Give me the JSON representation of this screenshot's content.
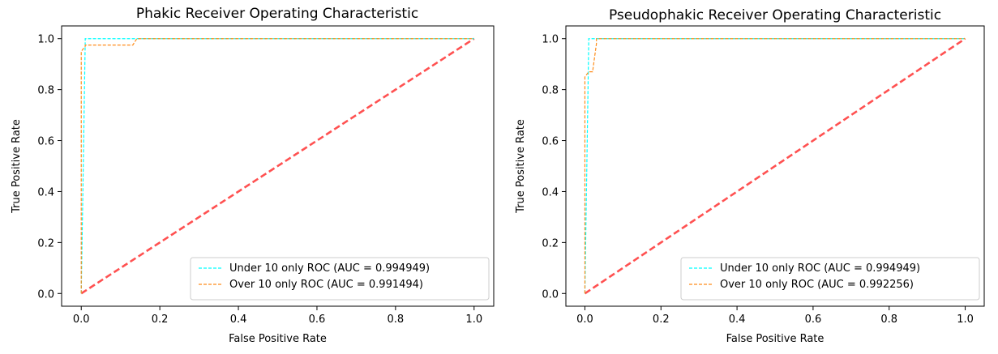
{
  "chart_data": [
    {
      "type": "line",
      "title": "Phakic Receiver Operating Characteristic",
      "xlabel": "False Positive Rate",
      "ylabel": "True Positive Rate",
      "xlim": [
        -0.05,
        1.05
      ],
      "ylim": [
        -0.05,
        1.05
      ],
      "xticks": [
        0.0,
        0.2,
        0.4,
        0.6,
        0.8,
        1.0
      ],
      "yticks": [
        0.0,
        0.2,
        0.4,
        0.6,
        0.8,
        1.0
      ],
      "tick_labels_x": [
        "0.0",
        "0.2",
        "0.4",
        "0.6",
        "0.8",
        "1.0"
      ],
      "tick_labels_y": [
        "0.0",
        "0.2",
        "0.4",
        "0.6",
        "0.8",
        "1.0"
      ],
      "grid": false,
      "legend_position": "lower-right",
      "series": [
        {
          "name": "Under 10 only ROC (AUC = 0.994949)",
          "color": "#00ffff",
          "style": "dashed",
          "x": [
            0.0,
            0.0101,
            0.0101,
            0.1414,
            1.0
          ],
          "y": [
            0.0,
            0.99,
            1.0,
            1.0,
            1.0
          ]
        },
        {
          "name": "Over 10 only ROC (AUC = 0.991494)",
          "color": "#ff8c1a",
          "style": "dashed",
          "x": [
            0.0,
            0.0,
            0.0101,
            0.0101,
            0.1313,
            0.1414,
            0.1414,
            1.0
          ],
          "y": [
            0.0,
            0.95,
            0.97,
            0.975,
            0.975,
            1.0,
            1.0,
            1.0
          ]
        },
        {
          "name": "",
          "color": "#ff3333",
          "style": "dashed-bold",
          "x": [
            0.0,
            1.0
          ],
          "y": [
            0.0,
            1.0
          ]
        }
      ]
    },
    {
      "type": "line",
      "title": "Pseudophakic Receiver Operating Characteristic",
      "xlabel": "False Positive Rate",
      "ylabel": "True Positive Rate",
      "xlim": [
        -0.05,
        1.05
      ],
      "ylim": [
        -0.05,
        1.05
      ],
      "xticks": [
        0.0,
        0.2,
        0.4,
        0.6,
        0.8,
        1.0
      ],
      "yticks": [
        0.0,
        0.2,
        0.4,
        0.6,
        0.8,
        1.0
      ],
      "tick_labels_x": [
        "0.0",
        "0.2",
        "0.4",
        "0.6",
        "0.8",
        "1.0"
      ],
      "tick_labels_y": [
        "0.0",
        "0.2",
        "0.4",
        "0.6",
        "0.8",
        "1.0"
      ],
      "grid": false,
      "legend_position": "lower-right",
      "series": [
        {
          "name": "Under 10 only ROC (AUC = 0.994949)",
          "color": "#00ffff",
          "style": "dashed",
          "x": [
            0.0,
            0.0101,
            0.0101,
            0.0303,
            1.0
          ],
          "y": [
            0.0,
            0.99,
            1.0,
            1.0,
            1.0
          ]
        },
        {
          "name": "Over 10 only ROC (AUC = 0.992256)",
          "color": "#ff8c1a",
          "style": "dashed",
          "x": [
            0.0,
            0.0,
            0.0101,
            0.0202,
            0.0303,
            0.0303,
            1.0
          ],
          "y": [
            0.0,
            0.85,
            0.87,
            0.87,
            0.98,
            1.0,
            1.0
          ]
        },
        {
          "name": "",
          "color": "#ff3333",
          "style": "dashed-bold",
          "x": [
            0.0,
            1.0
          ],
          "y": [
            0.0,
            1.0
          ]
        }
      ]
    }
  ]
}
